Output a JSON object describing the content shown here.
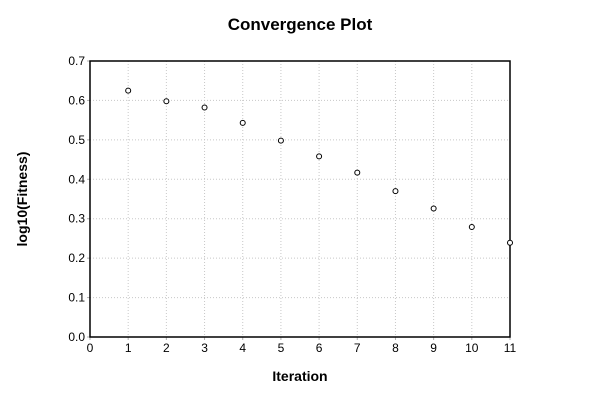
{
  "figure": {
    "background": "#ffffff"
  },
  "chart_data": {
    "type": "scatter",
    "title": "Convergence Plot",
    "xlabel": "Iteration",
    "ylabel": "log10(Fitness)",
    "x": [
      1,
      2,
      3,
      4,
      5,
      6,
      7,
      8,
      9,
      10,
      11
    ],
    "y": [
      0.625,
      0.598,
      0.582,
      0.543,
      0.498,
      0.458,
      0.417,
      0.37,
      0.326,
      0.279,
      0.239
    ],
    "xlim": [
      0,
      11
    ],
    "ylim": [
      0,
      0.7
    ],
    "xticks": [
      0,
      1,
      2,
      3,
      4,
      5,
      6,
      7,
      8,
      9,
      10,
      11
    ],
    "yticks": [
      0.0,
      0.1,
      0.2,
      0.3,
      0.4,
      0.5,
      0.6,
      0.7
    ],
    "ytick_decimals": 1,
    "grid": "dotted",
    "legend": "none",
    "marker": "open-circle",
    "colors": {
      "grid": "#c8c8c8",
      "tick": "#b0b0b0",
      "axis_frame": "#000000",
      "marker_stroke": "#000000",
      "marker_fill": "#ffffff",
      "text": "#000000"
    }
  }
}
